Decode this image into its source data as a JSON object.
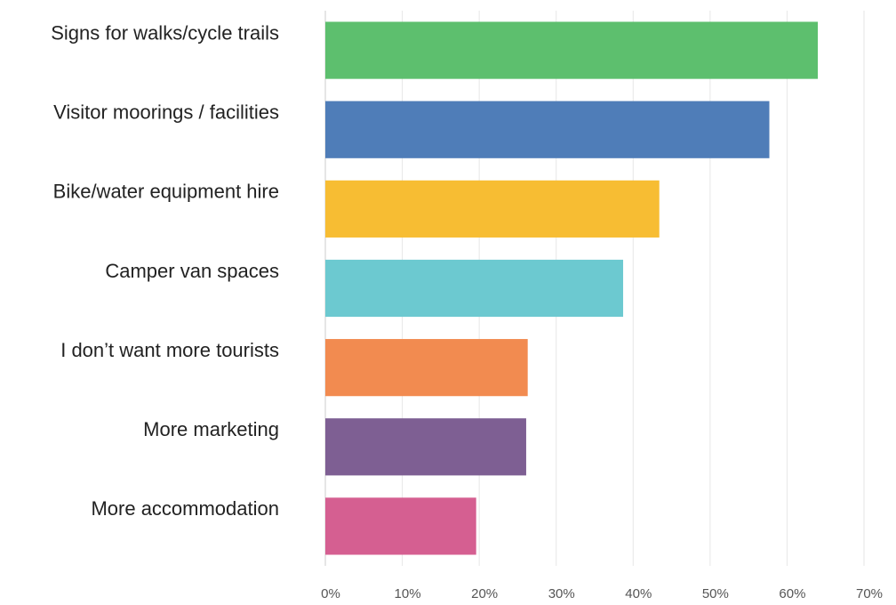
{
  "chart_data": {
    "type": "bar",
    "orientation": "horizontal",
    "categories": [
      "Signs for walks/cycle trails",
      "Visitor moorings / facilities",
      "Bike/water equipment hire",
      "Camper van spaces",
      "I don’t want more tourists",
      "More marketing",
      "More accommodation"
    ],
    "values": [
      64.0,
      57.7,
      43.4,
      38.7,
      26.3,
      26.1,
      19.6
    ],
    "colors": [
      "#5dbf6e",
      "#4f7db8",
      "#f7bd33",
      "#6cc9d0",
      "#f28b50",
      "#7e5f93",
      "#d55f91"
    ],
    "xlim": [
      0,
      70
    ],
    "xticks": [
      {
        "value": 0,
        "label": "0%"
      },
      {
        "value": 10,
        "label": "10%"
      },
      {
        "value": 20,
        "label": "20%"
      },
      {
        "value": 30,
        "label": "30%"
      },
      {
        "value": 40,
        "label": "40%"
      },
      {
        "value": 50,
        "label": "50%"
      },
      {
        "value": 60,
        "label": "60%"
      },
      {
        "value": 70,
        "label": "70%"
      }
    ],
    "grid": true
  }
}
